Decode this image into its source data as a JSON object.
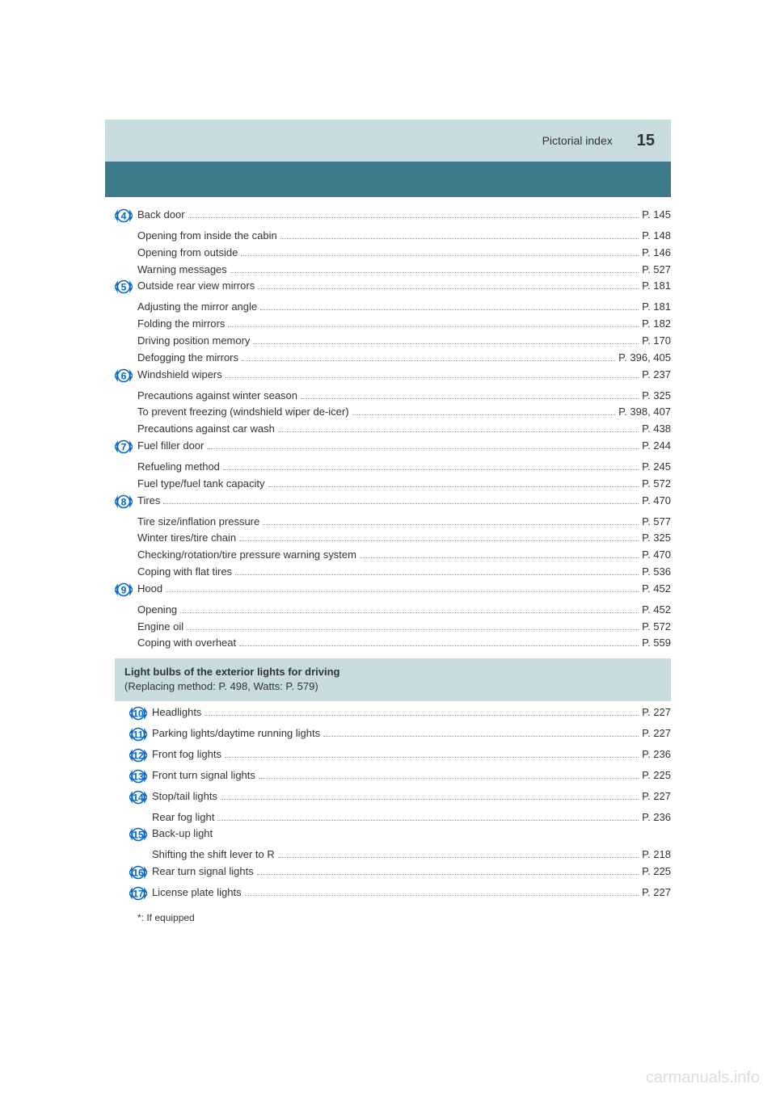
{
  "header": {
    "section_title": "Pictorial index",
    "page_number": "15"
  },
  "banner": {
    "title": "Light bulbs of the exterior lights for driving",
    "subtitle": "(Replacing method: P. 498, Watts: P. 579)"
  },
  "rows": [
    {
      "num": "4",
      "label": "Back door",
      "page": "P. 145",
      "subs": [
        {
          "label": "Opening from inside the cabin",
          "page": "P. 148"
        },
        {
          "label": "Opening from outside",
          "page": "P. 146"
        },
        {
          "label": "Warning messages",
          "page": "P. 527"
        }
      ]
    },
    {
      "num": "5",
      "label": "Outside rear view mirrors",
      "page": "P. 181",
      "subs": [
        {
          "label": "Adjusting the mirror angle",
          "page": "P. 181"
        },
        {
          "label": "Folding the mirrors",
          "page": "P. 182"
        },
        {
          "label": "Driving position memory",
          "page": "P. 170"
        },
        {
          "label": "Defogging the mirrors",
          "page": "P. 396, 405"
        }
      ]
    },
    {
      "num": "6",
      "label": "Windshield wipers",
      "page": "P. 237",
      "subs": [
        {
          "label": "Precautions against winter season",
          "page": "P. 325"
        },
        {
          "label": "To prevent freezing (windshield wiper de-icer)",
          "page": "P. 398, 407"
        },
        {
          "label": "Precautions against car wash",
          "page": "P. 438"
        }
      ]
    },
    {
      "num": "7",
      "label": "Fuel filler door",
      "page": "P. 244",
      "subs": [
        {
          "label": "Refueling method",
          "page": "P. 245"
        },
        {
          "label": "Fuel type/fuel tank capacity",
          "page": "P. 572"
        }
      ]
    },
    {
      "num": "8",
      "label": "Tires",
      "page": "P. 470",
      "subs": [
        {
          "label": "Tire size/inflation pressure",
          "page": "P. 577"
        },
        {
          "label": "Winter tires/tire chain",
          "page": "P. 325"
        },
        {
          "label": "Checking/rotation/tire pressure warning system",
          "page": "P. 470"
        },
        {
          "label": "Coping with flat tires",
          "page": "P. 536"
        }
      ]
    },
    {
      "num": "9",
      "label": "Hood",
      "page": "P. 452",
      "subs": [
        {
          "label": "Opening",
          "page": "P. 452"
        },
        {
          "label": "Engine oil",
          "page": "P. 572"
        },
        {
          "label": "Coping with overheat",
          "page": "P. 559"
        }
      ]
    }
  ],
  "light_rows": [
    {
      "num": "10",
      "label": "Headlights",
      "page": "P. 227"
    },
    {
      "num": "11",
      "label": "Parking lights/daytime running lights",
      "page": "P. 227"
    },
    {
      "num": "12",
      "label": "Front fog lights",
      "page": "P. 236"
    },
    {
      "num": "13",
      "label": "Front turn signal lights",
      "page": "P. 225"
    },
    {
      "num": "14",
      "label": "Stop/tail lights",
      "page": "P. 227",
      "subs": [
        {
          "label": "Rear fog light",
          "page": "P. 236"
        }
      ]
    },
    {
      "num": "15",
      "label": "Back-up light",
      "subs": [
        {
          "label": "Shifting the shift lever to R",
          "page": "P. 218"
        }
      ]
    },
    {
      "num": "16",
      "label": "Rear turn signal lights",
      "page": "P. 225"
    },
    {
      "num": "17",
      "label": "License plate lights",
      "page": "P. 227"
    }
  ],
  "footnote": "*: If equipped",
  "watermark": "carmanuals.info"
}
